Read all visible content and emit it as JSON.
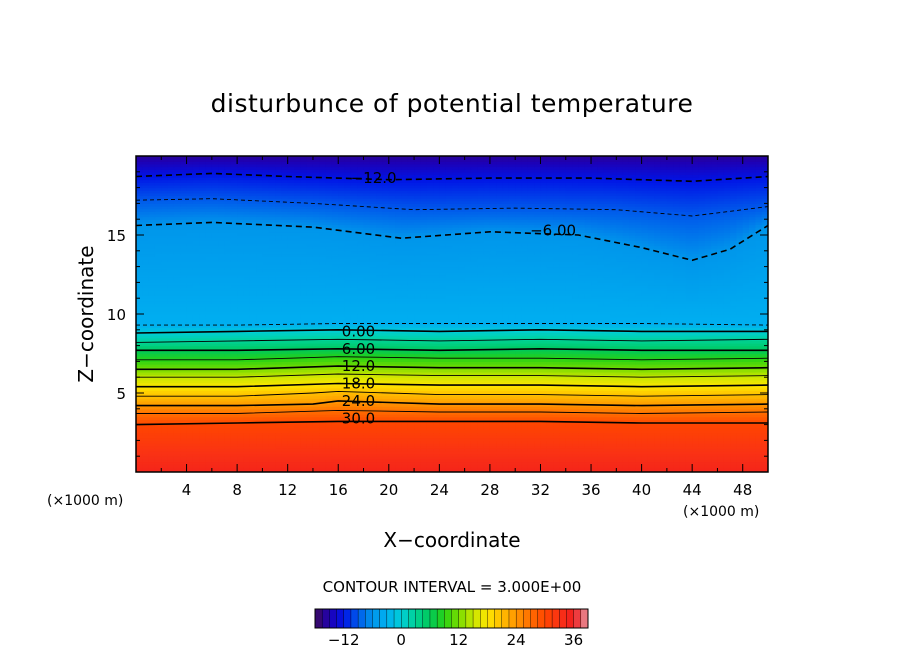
{
  "chart_data": {
    "type": "heatmap",
    "title": "disturbunce of potential temperature",
    "xlabel": "X−coordinate",
    "ylabel": "Z−coordinate",
    "x_unit_label": "(×1000 m)",
    "y_unit_label": "(×1000 m)",
    "xlim": [
      0,
      50
    ],
    "ylim": [
      0,
      20
    ],
    "x_ticks": [
      4,
      8,
      12,
      16,
      20,
      24,
      28,
      32,
      36,
      40,
      44,
      48
    ],
    "y_ticks": [
      5,
      10,
      15
    ],
    "x_tick_labels": [
      "4",
      "8",
      "12",
      "16",
      "20",
      "24",
      "28",
      "32",
      "36",
      "40",
      "44",
      "48"
    ],
    "y_tick_labels": [
      "5",
      "10",
      "15"
    ],
    "contour_interval_text": "CONTOUR INTERVAL = 3.000E+00",
    "contour_interval": 3.0,
    "value_range": [
      -18,
      39
    ],
    "colorbar": {
      "ticks": [
        -12,
        0,
        12,
        24,
        36
      ],
      "tick_labels": [
        "−12",
        "0",
        "12",
        "24",
        "36"
      ]
    },
    "contour_labels": [
      {
        "text": "−12.0",
        "level": -12,
        "x": 18.8,
        "z": 18.6
      },
      {
        "text": "−6.00",
        "level": -6,
        "x": 33.0,
        "z": 15.3
      },
      {
        "text": "0.00",
        "level": 0,
        "x": 17.6,
        "z": 8.9
      },
      {
        "text": "6.00",
        "level": 6,
        "x": 17.6,
        "z": 7.8
      },
      {
        "text": "12.0",
        "level": 12,
        "x": 17.6,
        "z": 6.7
      },
      {
        "text": "18.0",
        "level": 18,
        "x": 17.6,
        "z": 5.6
      },
      {
        "text": "24.0",
        "level": 24,
        "x": 17.6,
        "z": 4.5
      },
      {
        "text": "30.0",
        "level": 30,
        "x": 17.6,
        "z": 3.4
      }
    ],
    "contour_lines": [
      {
        "level": -12,
        "style": "dashed",
        "points": [
          [
            0,
            18.7
          ],
          [
            6,
            18.9
          ],
          [
            12,
            18.7
          ],
          [
            20,
            18.5
          ],
          [
            28,
            18.6
          ],
          [
            36,
            18.6
          ],
          [
            44,
            18.4
          ],
          [
            50,
            18.7
          ]
        ]
      },
      {
        "level": -9,
        "style": "dashed",
        "points": [
          [
            0,
            17.2
          ],
          [
            6,
            17.3
          ],
          [
            14,
            17.0
          ],
          [
            22,
            16.6
          ],
          [
            30,
            16.7
          ],
          [
            38,
            16.6
          ],
          [
            44,
            16.2
          ],
          [
            50,
            16.8
          ]
        ]
      },
      {
        "level": -6,
        "style": "dashed",
        "points": [
          [
            0,
            15.6
          ],
          [
            6,
            15.8
          ],
          [
            14,
            15.5
          ],
          [
            21,
            14.8
          ],
          [
            28,
            15.2
          ],
          [
            35,
            15.0
          ],
          [
            40,
            14.2
          ],
          [
            44,
            13.4
          ],
          [
            47,
            14.1
          ],
          [
            50,
            15.6
          ]
        ]
      },
      {
        "level": -3,
        "style": "dashed",
        "points": [
          [
            0,
            9.3
          ],
          [
            8,
            9.3
          ],
          [
            16,
            9.4
          ],
          [
            24,
            9.4
          ],
          [
            32,
            9.4
          ],
          [
            40,
            9.4
          ],
          [
            50,
            9.3
          ]
        ]
      },
      {
        "level": 0,
        "style": "solid",
        "points": [
          [
            0,
            8.8
          ],
          [
            8,
            8.9
          ],
          [
            16,
            9.0
          ],
          [
            24,
            8.9
          ],
          [
            32,
            9.0
          ],
          [
            40,
            8.9
          ],
          [
            50,
            8.9
          ]
        ]
      },
      {
        "level": 3,
        "style": "solid",
        "points": [
          [
            0,
            8.2
          ],
          [
            8,
            8.3
          ],
          [
            16,
            8.4
          ],
          [
            24,
            8.3
          ],
          [
            32,
            8.4
          ],
          [
            40,
            8.3
          ],
          [
            50,
            8.4
          ]
        ]
      },
      {
        "level": 6,
        "style": "solid",
        "points": [
          [
            0,
            7.7
          ],
          [
            8,
            7.7
          ],
          [
            16,
            7.8
          ],
          [
            24,
            7.7
          ],
          [
            32,
            7.8
          ],
          [
            40,
            7.7
          ],
          [
            50,
            7.7
          ]
        ]
      },
      {
        "level": 9,
        "style": "solid",
        "points": [
          [
            0,
            7.1
          ],
          [
            8,
            7.1
          ],
          [
            16,
            7.3
          ],
          [
            24,
            7.2
          ],
          [
            32,
            7.2
          ],
          [
            40,
            7.1
          ],
          [
            50,
            7.2
          ]
        ]
      },
      {
        "level": 12,
        "style": "solid",
        "points": [
          [
            0,
            6.5
          ],
          [
            8,
            6.5
          ],
          [
            16,
            6.7
          ],
          [
            24,
            6.6
          ],
          [
            32,
            6.6
          ],
          [
            40,
            6.5
          ],
          [
            50,
            6.6
          ]
        ]
      },
      {
        "level": 15,
        "style": "solid",
        "points": [
          [
            0,
            6.0
          ],
          [
            8,
            6.0
          ],
          [
            16,
            6.2
          ],
          [
            24,
            6.1
          ],
          [
            32,
            6.1
          ],
          [
            40,
            6.0
          ],
          [
            50,
            6.1
          ]
        ]
      },
      {
        "level": 18,
        "style": "solid",
        "points": [
          [
            0,
            5.4
          ],
          [
            8,
            5.4
          ],
          [
            16,
            5.6
          ],
          [
            24,
            5.5
          ],
          [
            32,
            5.5
          ],
          [
            40,
            5.4
          ],
          [
            50,
            5.5
          ]
        ]
      },
      {
        "level": 21,
        "style": "solid",
        "points": [
          [
            0,
            4.8
          ],
          [
            8,
            4.8
          ],
          [
            14,
            5.0
          ],
          [
            16,
            5.1
          ],
          [
            24,
            4.9
          ],
          [
            32,
            4.9
          ],
          [
            40,
            4.8
          ],
          [
            50,
            4.9
          ]
        ]
      },
      {
        "level": 24,
        "style": "solid",
        "points": [
          [
            0,
            4.2
          ],
          [
            8,
            4.2
          ],
          [
            14,
            4.3
          ],
          [
            16,
            4.5
          ],
          [
            24,
            4.3
          ],
          [
            32,
            4.3
          ],
          [
            40,
            4.2
          ],
          [
            50,
            4.3
          ]
        ]
      },
      {
        "level": 27,
        "style": "solid",
        "points": [
          [
            0,
            3.7
          ],
          [
            8,
            3.7
          ],
          [
            16,
            3.9
          ],
          [
            24,
            3.8
          ],
          [
            32,
            3.8
          ],
          [
            40,
            3.7
          ],
          [
            50,
            3.8
          ]
        ]
      },
      {
        "level": 30,
        "style": "solid",
        "points": [
          [
            0,
            3.0
          ],
          [
            8,
            3.1
          ],
          [
            16,
            3.2
          ],
          [
            24,
            3.2
          ],
          [
            32,
            3.2
          ],
          [
            40,
            3.1
          ],
          [
            50,
            3.1
          ]
        ]
      }
    ]
  }
}
